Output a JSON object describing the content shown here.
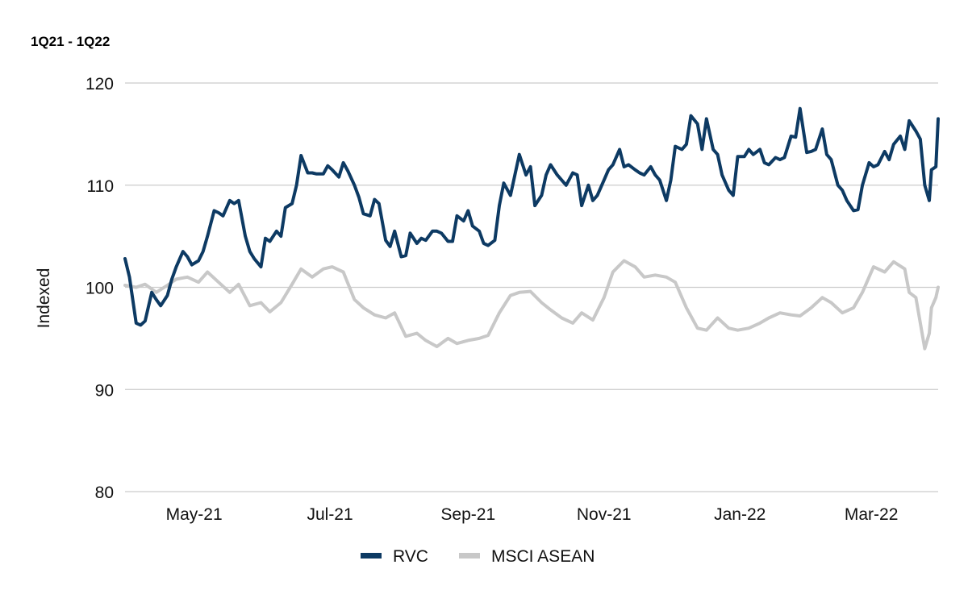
{
  "chart_data": {
    "type": "line",
    "title": "",
    "subtitle": "1Q21 - 1Q22",
    "ylabel": "Indexed",
    "xlabel": "",
    "ylim": [
      80,
      120
    ],
    "yticks": [
      80,
      90,
      100,
      110,
      120
    ],
    "grid": "horizontal",
    "legend_position": "bottom",
    "x_range": [
      "2021-03-31",
      "2022-03-31"
    ],
    "xticks": [
      {
        "label": "May-21",
        "date": "2021-05-01"
      },
      {
        "label": "Jul-21",
        "date": "2021-07-01"
      },
      {
        "label": "Sep-21",
        "date": "2021-09-01"
      },
      {
        "label": "Nov-21",
        "date": "2021-11-01"
      },
      {
        "label": "Jan-22",
        "date": "2022-01-01"
      },
      {
        "label": "Mar-22",
        "date": "2022-03-01"
      }
    ],
    "series": [
      {
        "name": "RVC",
        "color": "#0d3a63",
        "points": [
          [
            "2021-03-31",
            102.8
          ],
          [
            "2021-04-02",
            101.0
          ],
          [
            "2021-04-05",
            96.5
          ],
          [
            "2021-04-07",
            96.3
          ],
          [
            "2021-04-09",
            96.7
          ],
          [
            "2021-04-12",
            99.5
          ],
          [
            "2021-04-14",
            98.8
          ],
          [
            "2021-04-16",
            98.2
          ],
          [
            "2021-04-19",
            99.2
          ],
          [
            "2021-04-21",
            100.8
          ],
          [
            "2021-04-23",
            102.0
          ],
          [
            "2021-04-26",
            103.5
          ],
          [
            "2021-04-28",
            103.0
          ],
          [
            "2021-04-30",
            102.2
          ],
          [
            "2021-05-03",
            102.6
          ],
          [
            "2021-05-05",
            103.5
          ],
          [
            "2021-05-07",
            105.0
          ],
          [
            "2021-05-10",
            107.5
          ],
          [
            "2021-05-12",
            107.3
          ],
          [
            "2021-05-14",
            107.0
          ],
          [
            "2021-05-17",
            108.5
          ],
          [
            "2021-05-19",
            108.2
          ],
          [
            "2021-05-21",
            108.5
          ],
          [
            "2021-05-24",
            105.0
          ],
          [
            "2021-05-26",
            103.5
          ],
          [
            "2021-05-28",
            102.8
          ],
          [
            "2021-05-31",
            102.0
          ],
          [
            "2021-06-02",
            104.8
          ],
          [
            "2021-06-04",
            104.5
          ],
          [
            "2021-06-07",
            105.5
          ],
          [
            "2021-06-09",
            105.0
          ],
          [
            "2021-06-11",
            107.8
          ],
          [
            "2021-06-14",
            108.2
          ],
          [
            "2021-06-16",
            110.0
          ],
          [
            "2021-06-18",
            112.9
          ],
          [
            "2021-06-21",
            111.2
          ],
          [
            "2021-06-23",
            111.2
          ],
          [
            "2021-06-25",
            111.1
          ],
          [
            "2021-06-28",
            111.1
          ],
          [
            "2021-06-30",
            111.9
          ],
          [
            "2021-07-02",
            111.5
          ],
          [
            "2021-07-05",
            110.8
          ],
          [
            "2021-07-07",
            112.2
          ],
          [
            "2021-07-09",
            111.4
          ],
          [
            "2021-07-12",
            110.0
          ],
          [
            "2021-07-14",
            108.8
          ],
          [
            "2021-07-16",
            107.2
          ],
          [
            "2021-07-19",
            107.0
          ],
          [
            "2021-07-21",
            108.6
          ],
          [
            "2021-07-23",
            108.2
          ],
          [
            "2021-07-26",
            104.6
          ],
          [
            "2021-07-28",
            104.0
          ],
          [
            "2021-07-30",
            105.5
          ],
          [
            "2021-08-02",
            103.0
          ],
          [
            "2021-08-04",
            103.1
          ],
          [
            "2021-08-06",
            105.3
          ],
          [
            "2021-08-09",
            104.3
          ],
          [
            "2021-08-11",
            104.8
          ],
          [
            "2021-08-13",
            104.6
          ],
          [
            "2021-08-16",
            105.5
          ],
          [
            "2021-08-18",
            105.5
          ],
          [
            "2021-08-20",
            105.3
          ],
          [
            "2021-08-23",
            104.5
          ],
          [
            "2021-08-25",
            104.5
          ],
          [
            "2021-08-27",
            107.0
          ],
          [
            "2021-08-30",
            106.5
          ],
          [
            "2021-09-01",
            107.5
          ],
          [
            "2021-09-03",
            106.0
          ],
          [
            "2021-09-06",
            105.5
          ],
          [
            "2021-09-08",
            104.3
          ],
          [
            "2021-09-10",
            104.1
          ],
          [
            "2021-09-13",
            104.6
          ],
          [
            "2021-09-15",
            108.0
          ],
          [
            "2021-09-17",
            110.2
          ],
          [
            "2021-09-20",
            109.0
          ],
          [
            "2021-09-22",
            111.0
          ],
          [
            "2021-09-24",
            113.0
          ],
          [
            "2021-09-27",
            111.0
          ],
          [
            "2021-09-29",
            111.8
          ],
          [
            "2021-10-01",
            108.0
          ],
          [
            "2021-10-04",
            109.0
          ],
          [
            "2021-10-06",
            111.0
          ],
          [
            "2021-10-08",
            112.0
          ],
          [
            "2021-10-11",
            111.0
          ],
          [
            "2021-10-13",
            110.5
          ],
          [
            "2021-10-15",
            110.0
          ],
          [
            "2021-10-18",
            111.2
          ],
          [
            "2021-10-20",
            111.0
          ],
          [
            "2021-10-22",
            108.0
          ],
          [
            "2021-10-25",
            110.0
          ],
          [
            "2021-10-27",
            108.5
          ],
          [
            "2021-10-29",
            109.0
          ],
          [
            "2021-11-01",
            110.5
          ],
          [
            "2021-11-03",
            111.5
          ],
          [
            "2021-11-05",
            112.0
          ],
          [
            "2021-11-08",
            113.5
          ],
          [
            "2021-11-10",
            111.8
          ],
          [
            "2021-11-12",
            112.0
          ],
          [
            "2021-11-15",
            111.5
          ],
          [
            "2021-11-17",
            111.2
          ],
          [
            "2021-11-19",
            111.0
          ],
          [
            "2021-11-22",
            111.8
          ],
          [
            "2021-11-24",
            111.0
          ],
          [
            "2021-11-26",
            110.5
          ],
          [
            "2021-11-29",
            108.5
          ],
          [
            "2021-12-01",
            110.5
          ],
          [
            "2021-12-03",
            113.8
          ],
          [
            "2021-12-06",
            113.5
          ],
          [
            "2021-12-08",
            114.0
          ],
          [
            "2021-12-10",
            116.8
          ],
          [
            "2021-12-13",
            116.0
          ],
          [
            "2021-12-15",
            113.5
          ],
          [
            "2021-12-17",
            116.5
          ],
          [
            "2021-12-20",
            113.5
          ],
          [
            "2021-12-22",
            113.0
          ],
          [
            "2021-12-24",
            111.0
          ],
          [
            "2021-12-27",
            109.5
          ],
          [
            "2021-12-29",
            109.0
          ],
          [
            "2021-12-31",
            112.8
          ],
          [
            "2022-01-03",
            112.8
          ],
          [
            "2022-01-05",
            113.5
          ],
          [
            "2022-01-07",
            113.0
          ],
          [
            "2022-01-10",
            113.5
          ],
          [
            "2022-01-12",
            112.2
          ],
          [
            "2022-01-14",
            112.0
          ],
          [
            "2022-01-17",
            112.7
          ],
          [
            "2022-01-19",
            112.5
          ],
          [
            "2022-01-21",
            112.7
          ],
          [
            "2022-01-24",
            114.8
          ],
          [
            "2022-01-26",
            114.7
          ],
          [
            "2022-01-28",
            117.5
          ],
          [
            "2022-01-31",
            113.2
          ],
          [
            "2022-02-02",
            113.3
          ],
          [
            "2022-02-04",
            113.5
          ],
          [
            "2022-02-07",
            115.5
          ],
          [
            "2022-02-09",
            113.0
          ],
          [
            "2022-02-11",
            112.5
          ],
          [
            "2022-02-14",
            110.0
          ],
          [
            "2022-02-16",
            109.5
          ],
          [
            "2022-02-18",
            108.5
          ],
          [
            "2022-02-21",
            107.5
          ],
          [
            "2022-02-23",
            107.6
          ],
          [
            "2022-02-25",
            110.0
          ],
          [
            "2022-02-28",
            112.2
          ],
          [
            "2022-03-02",
            111.8
          ],
          [
            "2022-03-04",
            112.0
          ],
          [
            "2022-03-07",
            113.3
          ],
          [
            "2022-03-09",
            112.5
          ],
          [
            "2022-03-11",
            114.0
          ],
          [
            "2022-03-14",
            114.8
          ],
          [
            "2022-03-16",
            113.5
          ],
          [
            "2022-03-18",
            116.3
          ],
          [
            "2022-03-21",
            115.3
          ],
          [
            "2022-03-23",
            114.5
          ],
          [
            "2022-03-25",
            110.0
          ],
          [
            "2022-03-27",
            108.5
          ],
          [
            "2022-03-28",
            111.5
          ],
          [
            "2022-03-30",
            111.8
          ],
          [
            "2022-03-31",
            116.5
          ]
        ]
      },
      {
        "name": "MSCI ASEAN",
        "color": "#c8c8c8",
        "points": [
          [
            "2021-03-31",
            100.2
          ],
          [
            "2021-04-05",
            100.0
          ],
          [
            "2021-04-09",
            100.3
          ],
          [
            "2021-04-14",
            99.5
          ],
          [
            "2021-04-19",
            100.2
          ],
          [
            "2021-04-23",
            100.8
          ],
          [
            "2021-04-28",
            101.0
          ],
          [
            "2021-05-03",
            100.5
          ],
          [
            "2021-05-07",
            101.5
          ],
          [
            "2021-05-12",
            100.5
          ],
          [
            "2021-05-17",
            99.5
          ],
          [
            "2021-05-21",
            100.3
          ],
          [
            "2021-05-26",
            98.2
          ],
          [
            "2021-05-31",
            98.5
          ],
          [
            "2021-06-04",
            97.6
          ],
          [
            "2021-06-09",
            98.5
          ],
          [
            "2021-06-14",
            100.3
          ],
          [
            "2021-06-18",
            101.8
          ],
          [
            "2021-06-23",
            101.0
          ],
          [
            "2021-06-28",
            101.8
          ],
          [
            "2021-07-02",
            102.0
          ],
          [
            "2021-07-07",
            101.5
          ],
          [
            "2021-07-12",
            98.8
          ],
          [
            "2021-07-16",
            98.0
          ],
          [
            "2021-07-21",
            97.3
          ],
          [
            "2021-07-26",
            97.0
          ],
          [
            "2021-07-30",
            97.5
          ],
          [
            "2021-08-04",
            95.2
          ],
          [
            "2021-08-09",
            95.5
          ],
          [
            "2021-08-13",
            94.8
          ],
          [
            "2021-08-18",
            94.2
          ],
          [
            "2021-08-23",
            95.0
          ],
          [
            "2021-08-27",
            94.5
          ],
          [
            "2021-09-01",
            94.8
          ],
          [
            "2021-09-06",
            95.0
          ],
          [
            "2021-09-10",
            95.3
          ],
          [
            "2021-09-15",
            97.5
          ],
          [
            "2021-09-20",
            99.2
          ],
          [
            "2021-09-24",
            99.5
          ],
          [
            "2021-09-29",
            99.6
          ],
          [
            "2021-10-04",
            98.5
          ],
          [
            "2021-10-08",
            97.8
          ],
          [
            "2021-10-13",
            97.0
          ],
          [
            "2021-10-18",
            96.5
          ],
          [
            "2021-10-22",
            97.5
          ],
          [
            "2021-10-27",
            96.8
          ],
          [
            "2021-11-01",
            99.0
          ],
          [
            "2021-11-05",
            101.5
          ],
          [
            "2021-11-10",
            102.6
          ],
          [
            "2021-11-15",
            102.0
          ],
          [
            "2021-11-19",
            101.0
          ],
          [
            "2021-11-24",
            101.2
          ],
          [
            "2021-11-29",
            101.0
          ],
          [
            "2021-12-03",
            100.5
          ],
          [
            "2021-12-08",
            98.0
          ],
          [
            "2021-12-13",
            96.0
          ],
          [
            "2021-12-17",
            95.8
          ],
          [
            "2021-12-22",
            97.0
          ],
          [
            "2021-12-27",
            96.0
          ],
          [
            "2021-12-31",
            95.8
          ],
          [
            "2022-01-05",
            96.0
          ],
          [
            "2022-01-10",
            96.5
          ],
          [
            "2022-01-14",
            97.0
          ],
          [
            "2022-01-19",
            97.5
          ],
          [
            "2022-01-24",
            97.3
          ],
          [
            "2022-01-28",
            97.2
          ],
          [
            "2022-02-02",
            98.0
          ],
          [
            "2022-02-07",
            99.0
          ],
          [
            "2022-02-11",
            98.5
          ],
          [
            "2022-02-16",
            97.5
          ],
          [
            "2022-02-21",
            98.0
          ],
          [
            "2022-02-25",
            99.5
          ],
          [
            "2022-03-02",
            102.0
          ],
          [
            "2022-03-07",
            101.5
          ],
          [
            "2022-03-11",
            102.5
          ],
          [
            "2022-03-16",
            101.8
          ],
          [
            "2022-03-18",
            99.5
          ],
          [
            "2022-03-21",
            99.0
          ],
          [
            "2022-03-23",
            96.5
          ],
          [
            "2022-03-25",
            94.0
          ],
          [
            "2022-03-27",
            95.5
          ],
          [
            "2022-03-28",
            98.0
          ],
          [
            "2022-03-30",
            99.0
          ],
          [
            "2022-03-31",
            100.0
          ]
        ]
      }
    ]
  }
}
